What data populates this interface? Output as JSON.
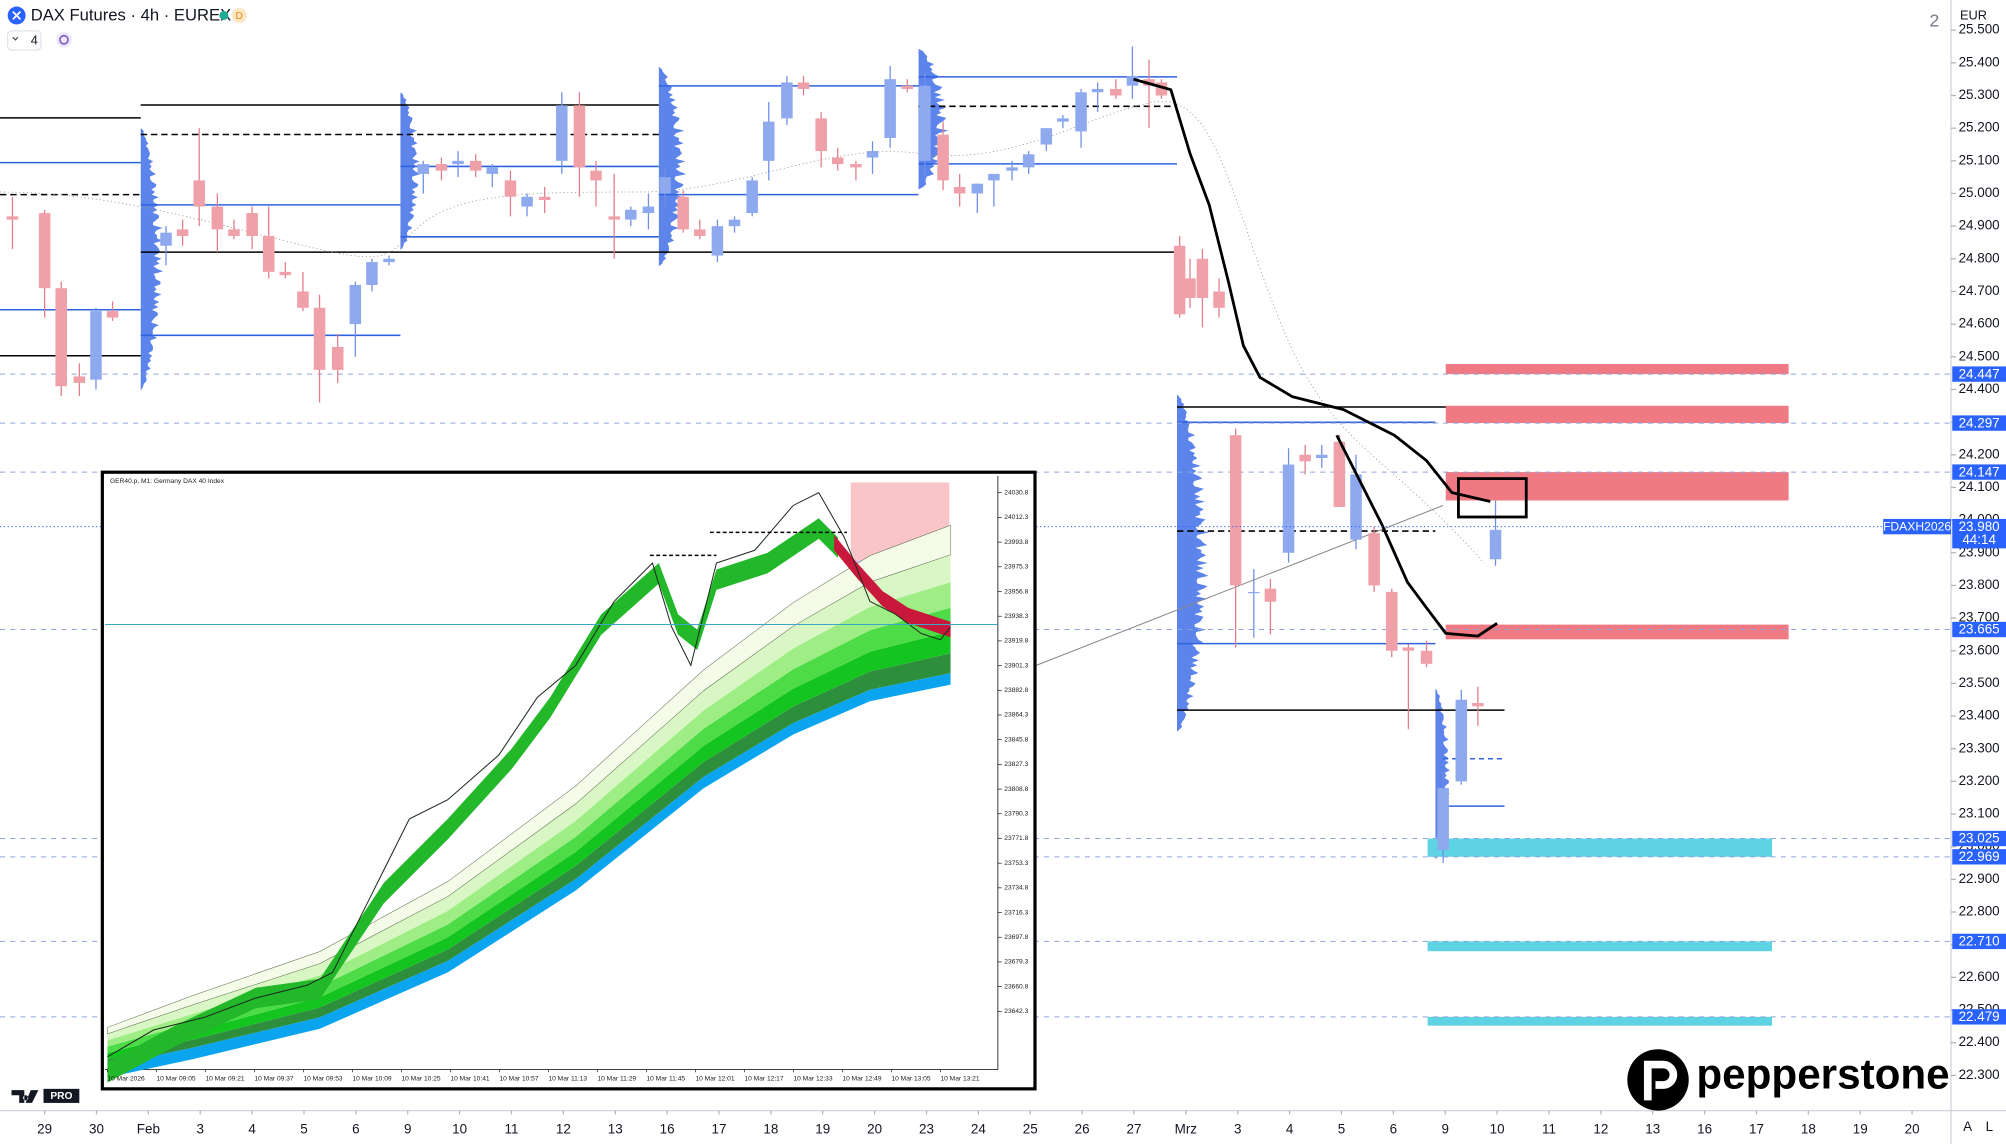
{
  "header": {
    "title": "DAX Futures · 4h · EUREX",
    "badge": "D",
    "layout_count": "4",
    "currency": "EUR",
    "pane_index": "2",
    "brand": "pepperstone",
    "plan_badge": "PRO",
    "scale_buttons": [
      "A",
      "L"
    ]
  },
  "chart_data": {
    "type": "candlestick",
    "up_color": "#8fa9ef",
    "down_color": "#f0a0a8",
    "xlim": [
      -0.86,
      36.75
    ],
    "ylim": [
      22192,
      25592
    ],
    "xticks": [
      {
        "value": 0,
        "label": "29"
      },
      {
        "value": 1,
        "label": "30"
      },
      {
        "value": 2,
        "label": "Feb"
      },
      {
        "value": 3,
        "label": "3"
      },
      {
        "value": 4,
        "label": "4"
      },
      {
        "value": 5,
        "label": "5"
      },
      {
        "value": 6,
        "label": "6"
      },
      {
        "value": 7,
        "label": "9"
      },
      {
        "value": 8,
        "label": "10"
      },
      {
        "value": 9,
        "label": "11"
      },
      {
        "value": 10,
        "label": "12"
      },
      {
        "value": 11,
        "label": "13"
      },
      {
        "value": 12,
        "label": "16"
      },
      {
        "value": 13,
        "label": "17"
      },
      {
        "value": 14,
        "label": "18"
      },
      {
        "value": 15,
        "label": "19"
      },
      {
        "value": 16,
        "label": "20"
      },
      {
        "value": 17,
        "label": "23"
      },
      {
        "value": 18,
        "label": "24"
      },
      {
        "value": 19,
        "label": "25"
      },
      {
        "value": 20,
        "label": "26"
      },
      {
        "value": 21,
        "label": "27"
      },
      {
        "value": 22,
        "label": "Mrz"
      },
      {
        "value": 23,
        "label": "3"
      },
      {
        "value": 24,
        "label": "4"
      },
      {
        "value": 25,
        "label": "5"
      },
      {
        "value": 26,
        "label": "6"
      },
      {
        "value": 27,
        "label": "9"
      },
      {
        "value": 28,
        "label": "10"
      },
      {
        "value": 29,
        "label": "11"
      },
      {
        "value": 30,
        "label": "12"
      },
      {
        "value": 31,
        "label": "13"
      },
      {
        "value": 32,
        "label": "16"
      },
      {
        "value": 33,
        "label": "17"
      },
      {
        "value": 34,
        "label": "18"
      },
      {
        "value": 35,
        "label": "19"
      },
      {
        "value": 36,
        "label": "20"
      }
    ],
    "yticks": [
      {
        "value": 25500,
        "label": "25.500"
      },
      {
        "value": 25400,
        "label": "25.400"
      },
      {
        "value": 25300,
        "label": "25.300"
      },
      {
        "value": 25200,
        "label": "25.200"
      },
      {
        "value": 25100,
        "label": "25.100"
      },
      {
        "value": 25000,
        "label": "25.000"
      },
      {
        "value": 24900,
        "label": "24.900"
      },
      {
        "value": 24800,
        "label": "24.800"
      },
      {
        "value": 24700,
        "label": "24.700"
      },
      {
        "value": 24600,
        "label": "24.600"
      },
      {
        "value": 24500,
        "label": "24.500"
      },
      {
        "value": 24400,
        "label": "24.400"
      },
      {
        "value": 24300,
        "label": "24.300"
      },
      {
        "value": 24200,
        "label": "24.200"
      },
      {
        "value": 24100,
        "label": "24.100"
      },
      {
        "value": 24000,
        "label": "24.000"
      },
      {
        "value": 23900,
        "label": "23.900"
      },
      {
        "value": 23800,
        "label": "23.800"
      },
      {
        "value": 23700,
        "label": "23.700"
      },
      {
        "value": 23600,
        "label": "23.600"
      },
      {
        "value": 23500,
        "label": "23.500"
      },
      {
        "value": 23400,
        "label": "23.400"
      },
      {
        "value": 23300,
        "label": "23.300"
      },
      {
        "value": 23200,
        "label": "23.200"
      },
      {
        "value": 23100,
        "label": "23.100"
      },
      {
        "value": 23000,
        "label": "23.000"
      },
      {
        "value": 22900,
        "label": "22.900"
      },
      {
        "value": 22800,
        "label": "22.800"
      },
      {
        "value": 22700,
        "label": "22.700"
      },
      {
        "value": 22600,
        "label": "22.600"
      },
      {
        "value": 22500,
        "label": "22.500"
      },
      {
        "value": 22400,
        "label": "22.400"
      },
      {
        "value": 22300,
        "label": "22.300"
      }
    ],
    "x": [
      -0.62,
      0,
      0.32,
      0.67,
      0.99,
      1.31,
      2.34,
      2.66,
      2.98,
      3.33,
      3.65,
      4.0,
      4.32,
      4.64,
      4.98,
      5.3,
      5.65,
      5.99,
      6.31,
      6.64,
      7.3,
      7.65,
      7.97,
      8.31,
      8.63,
      8.98,
      9.3,
      9.64,
      9.97,
      10.31,
      10.63,
      10.98,
      11.3,
      11.64,
      11.96,
      12.31,
      12.63,
      12.97,
      13.3,
      13.64,
      13.96,
      14.31,
      14.63,
      14.97,
      15.29,
      15.64,
      15.96,
      16.3,
      16.63,
      16.97,
      17.32,
      17.64,
      17.98,
      18.3,
      18.65,
      18.97,
      19.31,
      19.63,
      19.98,
      20.3,
      20.65,
      20.97,
      21.29,
      21.53,
      21.88,
      22.08,
      22.32,
      22.64,
      22.96,
      23.31,
      23.63,
      23.98,
      24.3,
      24.62,
      24.96,
      25.28,
      25.63,
      25.97,
      26.29,
      26.64,
      26.96,
      27.31,
      27.63,
      27.97
    ],
    "open": [
      24930,
      24940,
      24710,
      24440,
      24430,
      24640,
      24840,
      24890,
      25040,
      24960,
      24890,
      24940,
      24870,
      24760,
      24700,
      24650,
      24530,
      24600,
      24720,
      24790,
      25060,
      25090,
      25090,
      25100,
      25060,
      25040,
      24960,
      24990,
      25100,
      25270,
      25070,
      24930,
      24920,
      24940,
      25000,
      24990,
      24890,
      24810,
      24900,
      24940,
      25100,
      25230,
      25340,
      25230,
      25110,
      25090,
      25110,
      25170,
      25330,
      25100,
      25180,
      25020,
      25000,
      25040,
      25070,
      25080,
      25150,
      25220,
      25190,
      25310,
      25320,
      25330,
      25350,
      25340,
      24840,
      24740,
      24800,
      24700,
      24260,
      23780,
      23790,
      23900,
      24200,
      24190,
      24240,
      23940,
      23960,
      23780,
      23610,
      23600,
      22990,
      23200,
      23440,
      23880
    ],
    "high": [
      24990,
      24950,
      24730,
      24480,
      24650,
      24670,
      24900,
      24920,
      25200,
      25000,
      24920,
      24960,
      24960,
      24790,
      24760,
      24690,
      24570,
      24730,
      24800,
      24810,
      25100,
      25110,
      25130,
      25120,
      25090,
      25070,
      25000,
      25020,
      25310,
      25310,
      25100,
      25060,
      24960,
      25000,
      25080,
      25010,
      24920,
      24920,
      24930,
      25050,
      25280,
      25360,
      25360,
      25250,
      25140,
      25100,
      25160,
      25390,
      25350,
      25370,
      25220,
      25060,
      25030,
      25060,
      25100,
      25130,
      25200,
      25240,
      25320,
      25340,
      25350,
      25450,
      25410,
      25350,
      24870,
      24800,
      24830,
      24740,
      24280,
      23850,
      23820,
      24220,
      24230,
      24230,
      24260,
      24200,
      23980,
      23790,
      23620,
      23630,
      23230,
      23480,
      23490,
      24060
    ],
    "low": [
      24830,
      24620,
      24380,
      24380,
      24400,
      24610,
      24780,
      24840,
      24900,
      24820,
      24860,
      24830,
      24740,
      24740,
      24640,
      24360,
      24420,
      24500,
      24700,
      24780,
      25000,
      25040,
      25050,
      25050,
      25020,
      24930,
      24930,
      24940,
      25060,
      24990,
      24960,
      24800,
      24900,
      24890,
      24960,
      24880,
      24860,
      24790,
      24880,
      24930,
      25040,
      25210,
      25300,
      25080,
      25070,
      25040,
      25060,
      25140,
      25310,
      25050,
      25010,
      24960,
      24940,
      24960,
      25040,
      25060,
      25130,
      25200,
      25140,
      25250,
      25290,
      25290,
      25200,
      25290,
      24620,
      24650,
      24590,
      24620,
      23610,
      23640,
      23650,
      23870,
      24140,
      24160,
      24050,
      23910,
      23780,
      23580,
      23360,
      23550,
      22950,
      23190,
      23370,
      23860
    ],
    "close": [
      24920,
      24710,
      24410,
      24420,
      24640,
      24620,
      24880,
      24870,
      24960,
      24890,
      24870,
      24870,
      24760,
      24750,
      24650,
      24460,
      24460,
      24720,
      24790,
      24800,
      25090,
      25070,
      25100,
      25070,
      25080,
      24990,
      24990,
      24980,
      25270,
      25080,
      25040,
      24920,
      24950,
      24960,
      25050,
      24890,
      24870,
      24900,
      24920,
      25040,
      25220,
      25340,
      25320,
      25130,
      25090,
      25080,
      25130,
      25350,
      25320,
      25330,
      25040,
      25000,
      25030,
      25060,
      25080,
      25120,
      25200,
      25230,
      25310,
      25320,
      25300,
      25360,
      25330,
      25300,
      24630,
      24680,
      24680,
      24650,
      23800,
      23780,
      23750,
      24170,
      24180,
      24200,
      24040,
      24140,
      23800,
      23600,
      23600,
      23560,
      23180,
      23450,
      23430,
      23970
    ],
    "lines": [
      {
        "color": "#000000",
        "x": [
          20.99,
          21.71,
          22.08,
          22.45,
          22.82,
          23.11,
          23.43,
          24.05,
          25.04,
          26.02,
          26.64,
          27.13,
          27.87
        ],
        "values": [
          25350,
          25318,
          25122,
          24965,
          24730,
          24534,
          24437,
          24378,
          24338,
          24260,
          24182,
          24084,
          24057
        ]
      },
      {
        "color": "#000000",
        "x": [
          24.91,
          25.78,
          26.27,
          26.64,
          27.01,
          27.63,
          28.0
        ],
        "values": [
          24260,
          23986,
          23810,
          23731,
          23653,
          23645,
          23684
        ]
      }
    ],
    "zones": [
      {
        "low": 24447,
        "high": 24478,
        "x0": 27.01,
        "x1": 33.62,
        "color": "#f07a84"
      },
      {
        "low": 24297,
        "high": 24350,
        "x0": 27.01,
        "x1": 33.62,
        "color": "#f07a84"
      },
      {
        "low": 24060,
        "high": 24147,
        "x0": 27.01,
        "x1": 33.62,
        "color": "#f07a84"
      },
      {
        "low": 23635,
        "high": 23680,
        "x0": 27.01,
        "x1": 33.62,
        "color": "#f07a84"
      },
      {
        "low": 22969,
        "high": 23025,
        "x0": 26.66,
        "x1": 33.3,
        "color": "#5dd3e3"
      },
      {
        "low": 22680,
        "high": 22710,
        "x0": 26.66,
        "x1": 33.3,
        "color": "#5dd3e3"
      },
      {
        "low": 22452,
        "high": 22479,
        "x0": 26.66,
        "x1": 33.3,
        "color": "#5dd3e3"
      }
    ],
    "levels": [
      {
        "value": 24447,
        "label": "24.447"
      },
      {
        "value": 24297,
        "label": "24.297"
      },
      {
        "value": 24147,
        "label": "24.147"
      },
      {
        "value": 23665,
        "label": "23.665"
      },
      {
        "value": 23025,
        "label": "23.025"
      },
      {
        "value": 22969,
        "label": "22.969"
      },
      {
        "value": 22710,
        "label": "22.710"
      },
      {
        "value": 22479,
        "label": "22.479"
      }
    ],
    "last_price": {
      "symbol": "FDAXH2026",
      "value": 23980,
      "label": "23.980",
      "countdown": "44:14"
    }
  },
  "inset": {
    "title": "GER40.p, M1:  Germany DAX 40 Index",
    "ylim": [
      23598.6,
      24043.3
    ],
    "yticks": [
      24030.8,
      24012.3,
      23993.8,
      23975.3,
      23956.8,
      23938.3,
      23919.8,
      23901.3,
      23882.8,
      23864.3,
      23845.8,
      23827.3,
      23808.8,
      23790.3,
      23771.8,
      23753.3,
      23734.8,
      23716.3,
      23697.8,
      23679.3,
      23660.8,
      23642.3
    ],
    "xlabels": [
      "10 Mar 2026",
      "10 Mar 09:05",
      "10 Mar 09:21",
      "10 Mar 09:37",
      "10 Mar 09:53",
      "10 Mar 10:09",
      "10 Mar 10:25",
      "10 Mar 10:41",
      "10 Mar 10:57",
      "10 Mar 11:13",
      "10 Mar 11:29",
      "10 Mar 11:45",
      "10 Mar 12:01",
      "10 Mar 12:17",
      "10 Mar 12:33",
      "10 Mar 12:49",
      "10 Mar 13:05",
      "10 Mar 13:21"
    ]
  }
}
